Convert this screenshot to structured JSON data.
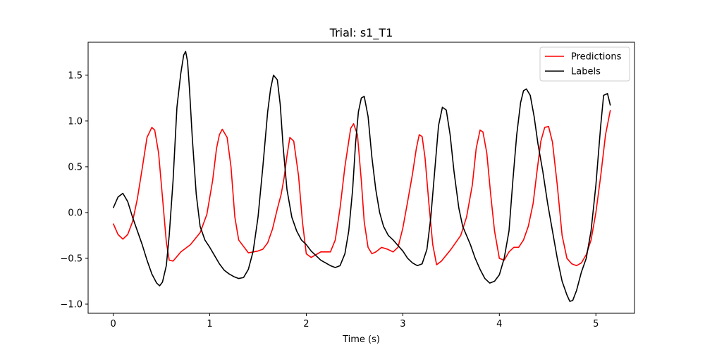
{
  "chart_data": {
    "type": "line",
    "title": "Trial: s1_T1",
    "xlabel": "Time (s)",
    "ylabel": "",
    "xlim": [
      -0.26,
      5.4
    ],
    "ylim": [
      -1.1,
      1.86
    ],
    "xticks": [
      0,
      1,
      2,
      3,
      4,
      5
    ],
    "xtick_labels": [
      "0",
      "1",
      "2",
      "3",
      "4",
      "5"
    ],
    "yticks": [
      -1.0,
      -0.5,
      0.0,
      0.5,
      1.0,
      1.5
    ],
    "ytick_labels": [
      "−1.0",
      "−0.5",
      "0.0",
      "0.5",
      "1.0",
      "1.5"
    ],
    "grid": false,
    "legend_position": "top-right",
    "series": [
      {
        "name": "Predictions",
        "color": "#ff0000",
        "x": [
          0.0,
          0.05,
          0.1,
          0.15,
          0.2,
          0.25,
          0.3,
          0.35,
          0.4,
          0.43,
          0.47,
          0.51,
          0.55,
          0.58,
          0.62,
          0.7,
          0.8,
          0.9,
          0.97,
          1.03,
          1.07,
          1.1,
          1.13,
          1.18,
          1.22,
          1.26,
          1.3,
          1.4,
          1.5,
          1.55,
          1.6,
          1.65,
          1.7,
          1.74,
          1.77,
          1.8,
          1.83,
          1.87,
          1.92,
          1.96,
          2.0,
          2.05,
          2.1,
          2.15,
          2.2,
          2.25,
          2.3,
          2.35,
          2.4,
          2.46,
          2.49,
          2.53,
          2.57,
          2.6,
          2.64,
          2.68,
          2.72,
          2.78,
          2.84,
          2.9,
          2.95,
          3.0,
          3.05,
          3.1,
          3.14,
          3.17,
          3.2,
          3.23,
          3.27,
          3.31,
          3.35,
          3.4,
          3.5,
          3.6,
          3.66,
          3.72,
          3.76,
          3.8,
          3.83,
          3.87,
          3.91,
          3.95,
          4.0,
          4.05,
          4.1,
          4.15,
          4.2,
          4.25,
          4.3,
          4.35,
          4.39,
          4.43,
          4.47,
          4.51,
          4.55,
          4.6,
          4.65,
          4.7,
          4.75,
          4.8,
          4.85,
          4.9,
          4.95,
          5.0,
          5.05,
          5.1,
          5.15
        ],
        "y": [
          -0.12,
          -0.24,
          -0.29,
          -0.24,
          -0.1,
          0.15,
          0.48,
          0.82,
          0.93,
          0.9,
          0.65,
          0.17,
          -0.32,
          -0.52,
          -0.53,
          -0.43,
          -0.35,
          -0.22,
          -0.02,
          0.35,
          0.7,
          0.85,
          0.91,
          0.82,
          0.5,
          -0.05,
          -0.3,
          -0.44,
          -0.42,
          -0.4,
          -0.33,
          -0.18,
          0.04,
          0.2,
          0.38,
          0.62,
          0.82,
          0.78,
          0.4,
          -0.1,
          -0.45,
          -0.49,
          -0.46,
          -0.43,
          -0.43,
          -0.43,
          -0.3,
          0.05,
          0.5,
          0.92,
          0.97,
          0.85,
          0.35,
          -0.1,
          -0.38,
          -0.45,
          -0.43,
          -0.38,
          -0.4,
          -0.43,
          -0.38,
          -0.17,
          0.12,
          0.42,
          0.7,
          0.85,
          0.83,
          0.6,
          0.1,
          -0.35,
          -0.57,
          -0.53,
          -0.4,
          -0.25,
          -0.05,
          0.3,
          0.7,
          0.9,
          0.88,
          0.65,
          0.2,
          -0.2,
          -0.5,
          -0.52,
          -0.43,
          -0.38,
          -0.38,
          -0.3,
          -0.15,
          0.1,
          0.45,
          0.78,
          0.93,
          0.94,
          0.77,
          0.3,
          -0.25,
          -0.5,
          -0.56,
          -0.58,
          -0.55,
          -0.46,
          -0.3,
          0.0,
          0.4,
          0.85,
          1.12
        ]
      },
      {
        "name": "Labels",
        "color": "#000000",
        "x": [
          0.0,
          0.05,
          0.1,
          0.15,
          0.2,
          0.25,
          0.3,
          0.35,
          0.4,
          0.45,
          0.48,
          0.51,
          0.55,
          0.58,
          0.62,
          0.66,
          0.7,
          0.73,
          0.75,
          0.77,
          0.79,
          0.82,
          0.86,
          0.9,
          0.95,
          1.0,
          1.05,
          1.1,
          1.15,
          1.2,
          1.25,
          1.3,
          1.35,
          1.4,
          1.45,
          1.5,
          1.55,
          1.6,
          1.63,
          1.66,
          1.7,
          1.73,
          1.76,
          1.8,
          1.85,
          1.9,
          1.95,
          2.0,
          2.05,
          2.1,
          2.15,
          2.2,
          2.25,
          2.3,
          2.35,
          2.4,
          2.44,
          2.48,
          2.51,
          2.54,
          2.57,
          2.6,
          2.64,
          2.68,
          2.72,
          2.76,
          2.8,
          2.85,
          2.9,
          2.95,
          3.0,
          3.05,
          3.1,
          3.15,
          3.2,
          3.25,
          3.29,
          3.33,
          3.37,
          3.41,
          3.45,
          3.49,
          3.53,
          3.58,
          3.62,
          3.66,
          3.7,
          3.75,
          3.8,
          3.85,
          3.9,
          3.95,
          4.0,
          4.05,
          4.1,
          4.14,
          4.18,
          4.22,
          4.25,
          4.28,
          4.32,
          4.36,
          4.4,
          4.45,
          4.5,
          4.55,
          4.6,
          4.65,
          4.7,
          4.73,
          4.76,
          4.8,
          4.85,
          4.9,
          4.95,
          5.0,
          5.05,
          5.08,
          5.12,
          5.15
        ],
        "y": [
          0.05,
          0.17,
          0.21,
          0.12,
          -0.05,
          -0.2,
          -0.35,
          -0.52,
          -0.67,
          -0.77,
          -0.8,
          -0.76,
          -0.58,
          -0.25,
          0.35,
          1.15,
          1.52,
          1.72,
          1.76,
          1.65,
          1.35,
          0.8,
          0.2,
          -0.15,
          -0.3,
          -0.38,
          -0.47,
          -0.56,
          -0.63,
          -0.67,
          -0.7,
          -0.72,
          -0.71,
          -0.62,
          -0.42,
          -0.05,
          0.5,
          1.1,
          1.35,
          1.5,
          1.45,
          1.18,
          0.72,
          0.25,
          -0.05,
          -0.2,
          -0.3,
          -0.35,
          -0.42,
          -0.47,
          -0.52,
          -0.55,
          -0.58,
          -0.6,
          -0.58,
          -0.45,
          -0.2,
          0.25,
          0.75,
          1.1,
          1.25,
          1.27,
          1.05,
          0.6,
          0.25,
          0.0,
          -0.15,
          -0.25,
          -0.3,
          -0.36,
          -0.42,
          -0.5,
          -0.55,
          -0.58,
          -0.56,
          -0.4,
          -0.05,
          0.45,
          0.95,
          1.15,
          1.12,
          0.85,
          0.45,
          0.05,
          -0.15,
          -0.25,
          -0.35,
          -0.5,
          -0.62,
          -0.72,
          -0.77,
          -0.75,
          -0.68,
          -0.5,
          -0.2,
          0.35,
          0.85,
          1.2,
          1.33,
          1.35,
          1.28,
          1.05,
          0.75,
          0.45,
          0.1,
          -0.2,
          -0.5,
          -0.75,
          -0.9,
          -0.97,
          -0.96,
          -0.85,
          -0.65,
          -0.5,
          -0.2,
          0.3,
          0.95,
          1.28,
          1.3,
          1.17
        ]
      }
    ]
  }
}
